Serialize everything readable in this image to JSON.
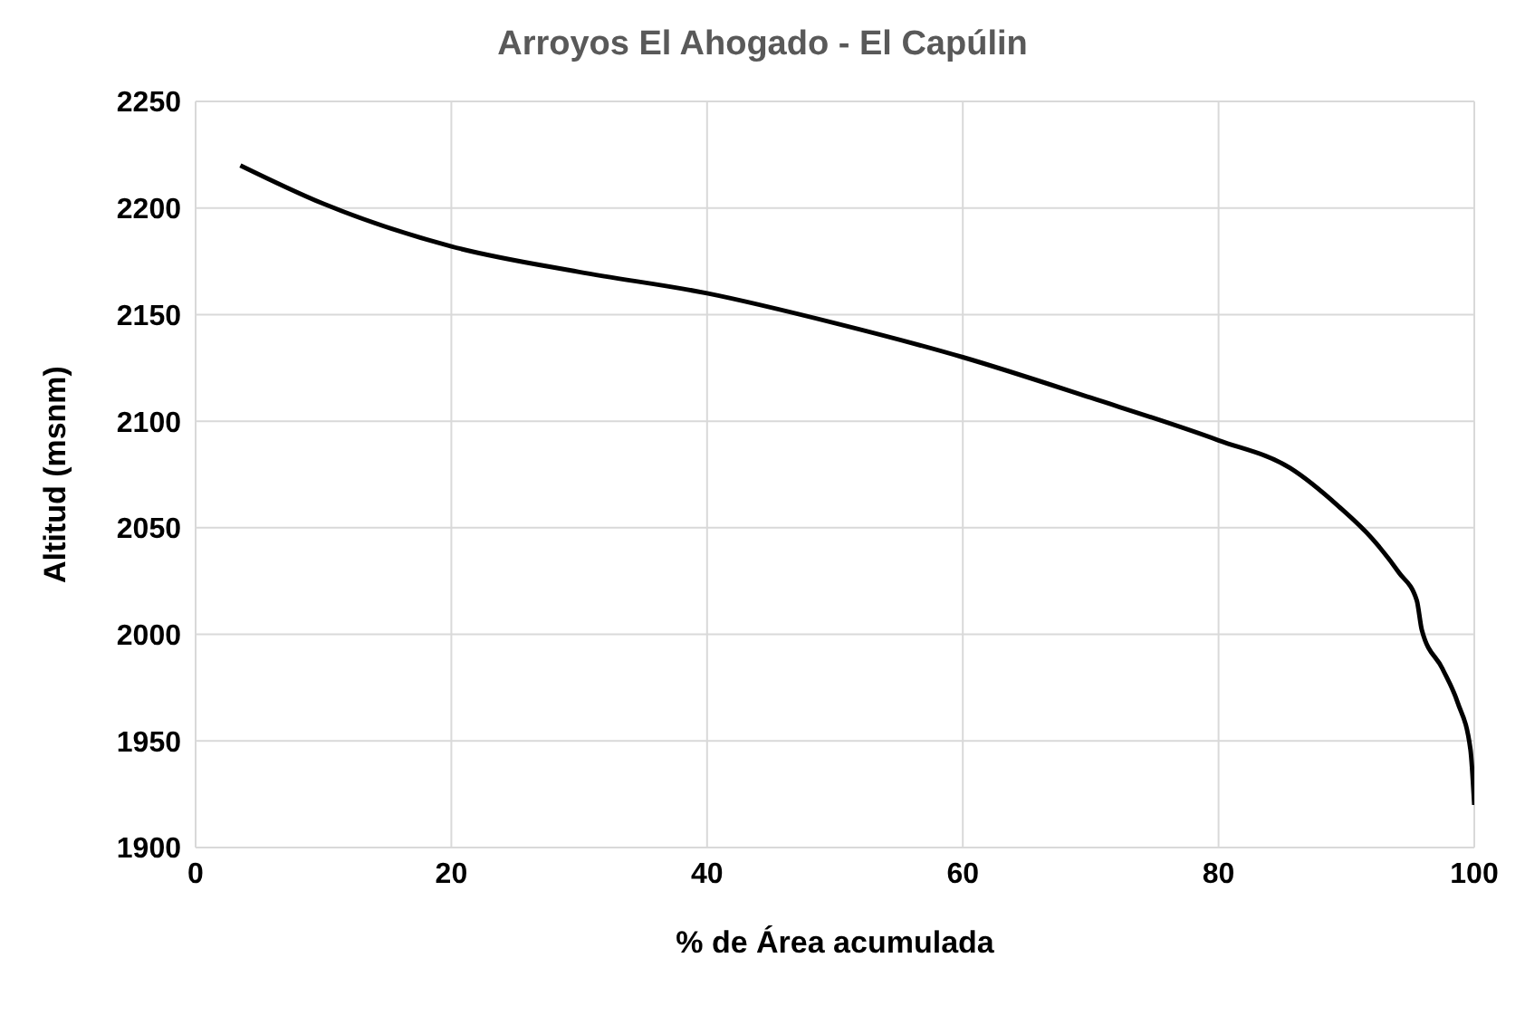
{
  "chart_data": {
    "type": "line",
    "title": "Arroyos El Ahogado - El Capúlin",
    "xlabel": "% de Área acumulada",
    "ylabel": "Altitud (msnm)",
    "x": [
      3.5,
      10,
      20,
      30,
      40,
      50,
      60,
      70,
      80,
      85.6,
      89.4,
      92,
      94.1,
      95.5,
      95.9,
      97.5,
      98.7,
      99.7,
      100
    ],
    "series": [
      {
        "color": "#000000",
        "values": [
          2220,
          2202,
          2182,
          2170,
          2160,
          2146,
          2130,
          2111,
          2091,
          2078,
          2060,
          2045,
          2029,
          2016,
          2002,
          1984,
          1968,
          1946,
          1920
        ]
      }
    ],
    "xlim": [
      0,
      100
    ],
    "xticks": [
      0,
      20,
      40,
      60,
      80,
      100
    ],
    "ylim": [
      1900,
      2250
    ],
    "yticks": [
      1900,
      1950,
      2000,
      2050,
      2100,
      2150,
      2200,
      2250
    ],
    "grid": true,
    "marker": "none",
    "line_style": "solid"
  }
}
